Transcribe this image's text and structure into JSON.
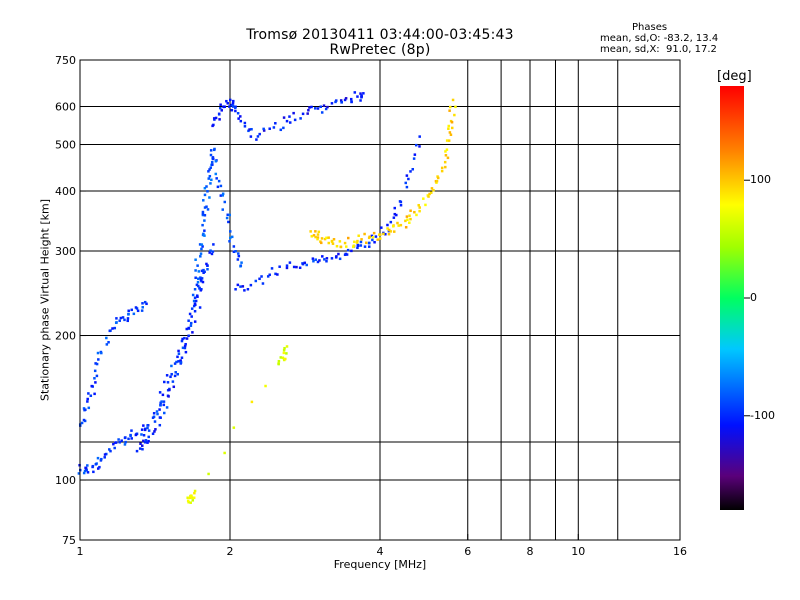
{
  "header": {
    "title_line1": "Tromsø 20130411 03:44:00-03:45:43",
    "title_line2": "RwPretec (8p)"
  },
  "phase_box": {
    "title": "Phases",
    "o_line": "mean, sd,O: -83.2, 13.4",
    "x_line": "mean, sd,X:  91.0, 17.2"
  },
  "colorbar": {
    "unit": "[deg]",
    "ticks": [
      {
        "value": 100,
        "label": "100"
      },
      {
        "value": 0,
        "label": "0"
      },
      {
        "value": -100,
        "label": "-100"
      }
    ],
    "range": [
      -180,
      180
    ]
  },
  "chart_data": {
    "type": "scatter",
    "title": "Tromsø 20130411 03:44:00-03:45:43",
    "subtitle": "RwPretec (8p)",
    "xlabel": "Frequency [MHz]",
    "ylabel": "Stationary phase Virtual Height [km]",
    "x_scale": "log",
    "y_scale": "log",
    "xlim": [
      1,
      16
    ],
    "ylim": [
      75,
      750
    ],
    "x_ticks": [
      {
        "value": 1,
        "label": "1"
      },
      {
        "value": 2,
        "label": "2"
      },
      {
        "value": 4,
        "label": "4"
      },
      {
        "value": 6,
        "label": "6"
      },
      {
        "value": 8,
        "label": "8"
      },
      {
        "value": 10,
        "label": "10"
      },
      {
        "value": 16,
        "label": "16"
      }
    ],
    "x_grid": [
      2,
      4,
      6,
      7,
      8,
      9,
      10,
      12
    ],
    "y_ticks": [
      {
        "value": 75,
        "label": "75"
      },
      {
        "value": 100,
        "label": "100"
      },
      {
        "value": 200,
        "label": "200"
      },
      {
        "value": 300,
        "label": "300"
      },
      {
        "value": 400,
        "label": "400"
      },
      {
        "value": 500,
        "label": "500"
      },
      {
        "value": 600,
        "label": "600"
      },
      {
        "value": 750,
        "label": "750"
      }
    ],
    "y_grid": [
      100,
      120,
      200,
      300,
      400,
      500,
      600
    ],
    "grid": true,
    "color_variable": "phase [deg]",
    "color_range": [
      -180,
      180
    ],
    "traces": [
      {
        "segment": "o-trace-low-e",
        "phase": -95,
        "points": [
          [
            1.0,
            105
          ],
          [
            1.03,
            105
          ],
          [
            1.06,
            107
          ],
          [
            1.1,
            110
          ],
          [
            1.15,
            115
          ],
          [
            1.2,
            120
          ],
          [
            1.25,
            122
          ],
          [
            1.3,
            125
          ],
          [
            1.35,
            128
          ],
          [
            1.4,
            135
          ],
          [
            1.45,
            145
          ],
          [
            1.5,
            160
          ],
          [
            1.55,
            175
          ],
          [
            1.6,
            195
          ],
          [
            1.65,
            215
          ],
          [
            1.7,
            240
          ],
          [
            1.75,
            260
          ],
          [
            1.8,
            280
          ]
        ]
      },
      {
        "segment": "o-trace-low-spread",
        "phase": -100,
        "points": [
          [
            1.3,
            115
          ],
          [
            1.35,
            120
          ],
          [
            1.4,
            125
          ],
          [
            1.45,
            135
          ],
          [
            1.5,
            150
          ],
          [
            1.55,
            165
          ],
          [
            1.6,
            180
          ],
          [
            1.65,
            200
          ],
          [
            1.7,
            225
          ],
          [
            1.75,
            250
          ],
          [
            1.8,
            280
          ],
          [
            1.85,
            310
          ]
        ]
      },
      {
        "segment": "o-trace-lower-left-branch",
        "phase": -92,
        "points": [
          [
            1.0,
            130
          ],
          [
            1.02,
            140
          ],
          [
            1.05,
            150
          ],
          [
            1.08,
            165
          ],
          [
            1.1,
            185
          ],
          [
            1.15,
            205
          ],
          [
            1.2,
            215
          ],
          [
            1.25,
            222
          ],
          [
            1.3,
            228
          ],
          [
            1.35,
            235
          ]
        ]
      },
      {
        "segment": "o-trace-f-cusp",
        "phase": -85,
        "points": [
          [
            1.7,
            250
          ],
          [
            1.72,
            280
          ],
          [
            1.74,
            310
          ],
          [
            1.76,
            340
          ],
          [
            1.78,
            370
          ],
          [
            1.8,
            400
          ],
          [
            1.82,
            430
          ],
          [
            1.84,
            460
          ],
          [
            1.86,
            490
          ],
          [
            1.9,
            420
          ],
          [
            1.95,
            380
          ],
          [
            2.0,
            330
          ],
          [
            2.05,
            300
          ],
          [
            2.1,
            280
          ]
        ]
      },
      {
        "segment": "o-trace-f-layer",
        "phase": -100,
        "points": [
          [
            2.05,
            250
          ],
          [
            2.2,
            255
          ],
          [
            2.4,
            268
          ],
          [
            2.6,
            280
          ],
          [
            2.8,
            282
          ],
          [
            3.0,
            285
          ],
          [
            3.2,
            290
          ],
          [
            3.4,
            295
          ],
          [
            3.6,
            305
          ],
          [
            3.8,
            312
          ],
          [
            4.0,
            325
          ],
          [
            4.2,
            345
          ],
          [
            4.4,
            380
          ],
          [
            4.6,
            440
          ],
          [
            4.8,
            520
          ]
        ]
      },
      {
        "segment": "o-trace-upper-f2",
        "phase": -105,
        "points": [
          [
            1.85,
            550
          ],
          [
            1.9,
            580
          ],
          [
            1.95,
            600
          ],
          [
            2.0,
            620
          ],
          [
            2.05,
            600
          ],
          [
            2.1,
            560
          ],
          [
            2.2,
            520
          ],
          [
            2.4,
            540
          ],
          [
            2.6,
            560
          ],
          [
            2.8,
            580
          ],
          [
            3.0,
            595
          ],
          [
            3.2,
            610
          ],
          [
            3.4,
            620
          ],
          [
            3.6,
            630
          ],
          [
            3.7,
            640
          ]
        ]
      },
      {
        "segment": "x-trace-f-layer",
        "phase": 95,
        "points": [
          [
            2.9,
            330
          ],
          [
            3.0,
            325
          ],
          [
            3.1,
            318
          ],
          [
            3.2,
            315
          ],
          [
            3.4,
            312
          ],
          [
            3.6,
            315
          ],
          [
            3.8,
            320
          ],
          [
            4.0,
            325
          ],
          [
            4.2,
            330
          ],
          [
            4.4,
            340
          ],
          [
            4.6,
            350
          ],
          [
            4.8,
            370
          ],
          [
            5.0,
            390
          ],
          [
            5.2,
            420
          ],
          [
            5.4,
            460
          ],
          [
            5.5,
            510
          ],
          [
            5.55,
            560
          ],
          [
            5.6,
            620
          ]
        ]
      },
      {
        "segment": "x-trace-low",
        "phase": 70,
        "points": [
          [
            1.65,
            90
          ],
          [
            1.68,
            92
          ],
          [
            1.7,
            95
          ],
          [
            2.5,
            175
          ],
          [
            2.55,
            180
          ],
          [
            2.6,
            190
          ]
        ]
      }
    ]
  }
}
